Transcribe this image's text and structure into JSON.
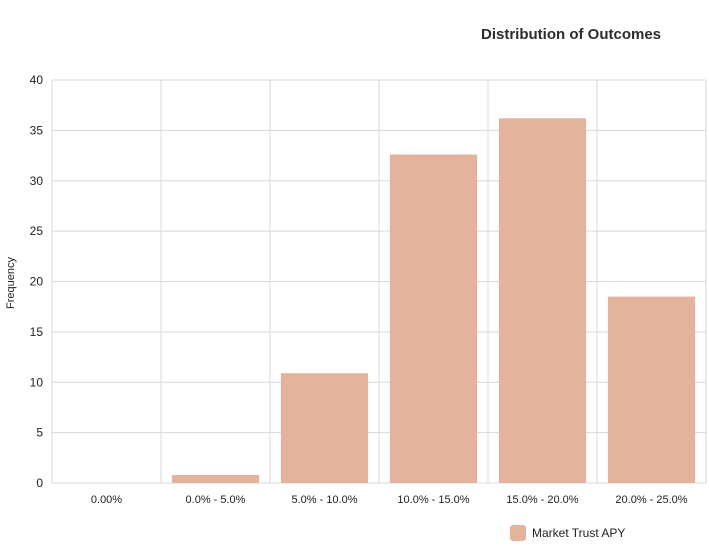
{
  "chart_data": {
    "type": "bar",
    "title": "Distribution of Outcomes",
    "xlabel": "",
    "ylabel": "Frequency",
    "categories": [
      "0.00%",
      "0.0% - 5.0%",
      "5.0% - 10.0%",
      "10.0% - 15.0%",
      "15.0% - 20.0%",
      "20.0% - 25.0%"
    ],
    "series": [
      {
        "name": "Market Trust APY",
        "values": [
          0,
          0.8,
          10.9,
          32.6,
          36.2,
          18.5
        ],
        "color": "#e4b39c"
      }
    ],
    "ylim": [
      0,
      40
    ],
    "yticks": [
      0,
      5,
      10,
      15,
      20,
      25,
      30,
      35,
      40
    ],
    "grid": true,
    "legend_position": "bottom-right"
  }
}
